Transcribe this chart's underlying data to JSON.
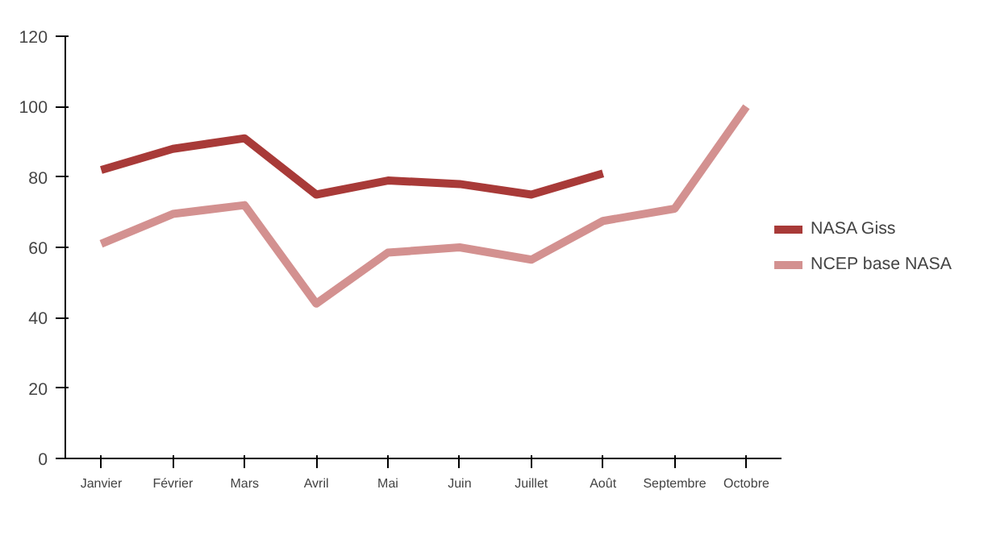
{
  "chart_data": {
    "type": "line",
    "categories": [
      "Janvier",
      "Février",
      "Mars",
      "Avril",
      "Mai",
      "Juin",
      "Juillet",
      "Août",
      "Septembre",
      "Octobre"
    ],
    "series": [
      {
        "name": "NASA Giss",
        "color": "#a83a38",
        "values": [
          82,
          88,
          91,
          75,
          79,
          78,
          75,
          81,
          null,
          null
        ]
      },
      {
        "name": "NCEP base NASA",
        "color": "#d39190",
        "values": [
          61,
          69.5,
          72,
          44,
          58.5,
          60,
          56.5,
          67.5,
          71,
          100
        ]
      }
    ],
    "ylim": [
      0,
      120
    ],
    "yticks": [
      0,
      20,
      40,
      60,
      80,
      100,
      120
    ],
    "grid": false,
    "legend": "right",
    "marker": "none",
    "line_style": "solid"
  }
}
